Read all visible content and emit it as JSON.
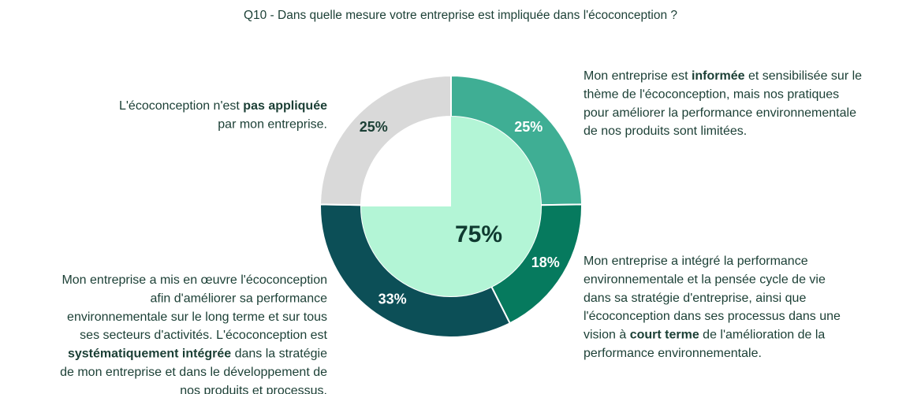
{
  "chart_data": {
    "type": "pie",
    "title": "Q10 - Dans quelle mesure votre entreprise est impliquée dans l'écoconception ?",
    "values": [
      25,
      18,
      33,
      25
    ],
    "value_labels": [
      "25%",
      "18%",
      "33%",
      "25%"
    ],
    "colors": [
      "#3fae94",
      "#067a5e",
      "#0c4f57",
      "#d9d9d9"
    ],
    "label_colors": [
      "#ffffff",
      "#ffffff",
      "#ffffff",
      "#1b3f35"
    ],
    "inner": {
      "values": [
        75
      ],
      "value_labels": [
        "75%"
      ],
      "color": "#b3f5d6"
    },
    "annotations": [
      [
        [
          {
            "text": "Mon entreprise est "
          },
          {
            "text": "informée",
            "bold": true
          },
          {
            "text": " et sensibilisée sur le"
          }
        ],
        [
          {
            "text": "thème de l'écoconception, mais nos pratiques"
          }
        ],
        [
          {
            "text": "pour améliorer la performance environnementale"
          }
        ],
        [
          {
            "text": "de nos produits sont limitées."
          }
        ]
      ],
      [
        [
          {
            "text": "Mon entreprise a intégré la performance"
          }
        ],
        [
          {
            "text": "environnementale et la pensée cycle de vie"
          }
        ],
        [
          {
            "text": "dans sa stratégie d'entreprise, ainsi que"
          }
        ],
        [
          {
            "text": "l'écoconception dans ses processus dans une"
          }
        ],
        [
          {
            "text": "vision à "
          },
          {
            "text": "court terme",
            "bold": true
          },
          {
            "text": " de l'amélioration de la"
          }
        ],
        [
          {
            "text": "performance environnementale."
          }
        ]
      ],
      [
        [
          {
            "text": "Mon entreprise a mis en œuvre l'écoconception"
          }
        ],
        [
          {
            "text": "afin d'améliorer sa performance"
          }
        ],
        [
          {
            "text": "environnementale sur le long terme et sur tous"
          }
        ],
        [
          {
            "text": "ses secteurs d'activités. L'écoconception est"
          }
        ],
        [
          {
            "text": "systématiquement intégrée",
            "bold": true
          },
          {
            "text": " dans la stratégie"
          }
        ],
        [
          {
            "text": "de mon entreprise et dans le développement de"
          }
        ],
        [
          {
            "text": "nos produits et processus."
          }
        ]
      ],
      [
        [
          {
            "text": "L'écoconception n'est "
          },
          {
            "text": "pas appliquée",
            "bold": true
          }
        ],
        [
          {
            "text": "par mon entreprise."
          }
        ]
      ]
    ]
  }
}
